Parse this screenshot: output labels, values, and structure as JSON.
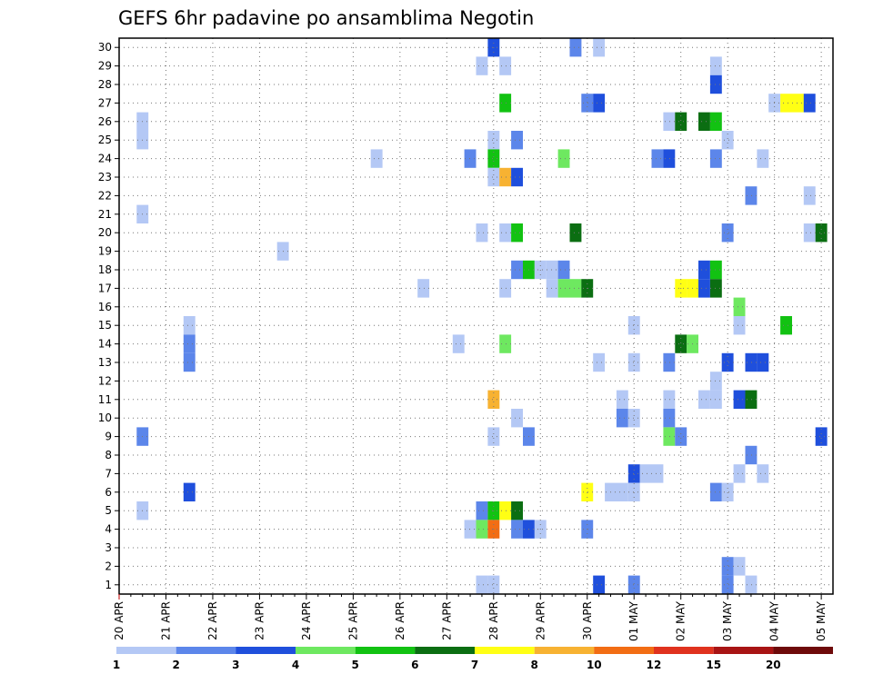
{
  "chart_data": {
    "type": "heatmap",
    "title": "GEFS 6hr padavine po ansamblima Negotin",
    "x_tick_labels": [
      "20 APR",
      "21 APR",
      "22 APR",
      "23 APR",
      "24 APR",
      "25 APR",
      "26 APR",
      "27 APR",
      "28 APR",
      "29 APR",
      "30 APR",
      "01 MAY",
      "02 MAY",
      "03 MAY",
      "04 MAY",
      "05 MAY"
    ],
    "y_tick_labels": [
      "1",
      "2",
      "3",
      "4",
      "5",
      "6",
      "7",
      "8",
      "9",
      "10",
      "11",
      "12",
      "13",
      "14",
      "15",
      "16",
      "17",
      "18",
      "19",
      "20",
      "21",
      "22",
      "23",
      "24",
      "25",
      "26",
      "27",
      "28",
      "29",
      "30"
    ],
    "legend": {
      "labels": [
        "1",
        "2",
        "3",
        "4",
        "5",
        "6",
        "7",
        "8",
        "10",
        "12",
        "15",
        "20"
      ],
      "bins": [
        {
          "from": 1,
          "to": 2,
          "color": "#b4c8f5"
        },
        {
          "from": 2,
          "to": 3,
          "color": "#5c86ea"
        },
        {
          "from": 3,
          "to": 4,
          "color": "#1f4fdc"
        },
        {
          "from": 4,
          "to": 5,
          "color": "#6ee860"
        },
        {
          "from": 5,
          "to": 6,
          "color": "#12c212"
        },
        {
          "from": 6,
          "to": 7,
          "color": "#0b6e12"
        },
        {
          "from": 7,
          "to": 8,
          "color": "#ffff14"
        },
        {
          "from": 8,
          "to": 10,
          "color": "#f7b232"
        },
        {
          "from": 10,
          "to": 12,
          "color": "#f26d14"
        },
        {
          "from": 12,
          "to": 15,
          "color": "#e0321e"
        },
        {
          "from": 15,
          "to": 20,
          "color": "#a81414"
        },
        {
          "from": 20,
          "to": null,
          "color": "#6e0a0a"
        }
      ]
    },
    "cells_note": "each cell: [day_offset_from_20_APR, member, bin_index]",
    "cells": [
      [
        8.0,
        30,
        2
      ],
      [
        9.75,
        30,
        1
      ],
      [
        10.25,
        30,
        0
      ],
      [
        7.75,
        29,
        0
      ],
      [
        8.25,
        29,
        0
      ],
      [
        12.75,
        29,
        0
      ],
      [
        12.75,
        28,
        2
      ],
      [
        8.25,
        27,
        4
      ],
      [
        10.0,
        27,
        1
      ],
      [
        10.25,
        27,
        2
      ],
      [
        14.0,
        27,
        0
      ],
      [
        14.25,
        27,
        6
      ],
      [
        14.5,
        27,
        6
      ],
      [
        14.75,
        27,
        2
      ],
      [
        0.5,
        26,
        0
      ],
      [
        11.75,
        26,
        0
      ],
      [
        12.0,
        26,
        5
      ],
      [
        12.5,
        26,
        5
      ],
      [
        12.75,
        26,
        4
      ],
      [
        0.5,
        25,
        0
      ],
      [
        8.0,
        25,
        0
      ],
      [
        8.5,
        25,
        1
      ],
      [
        13.0,
        25,
        0
      ],
      [
        5.5,
        24,
        0
      ],
      [
        7.5,
        24,
        1
      ],
      [
        8.0,
        24,
        4
      ],
      [
        9.5,
        24,
        3
      ],
      [
        11.5,
        24,
        1
      ],
      [
        11.75,
        24,
        2
      ],
      [
        12.75,
        24,
        1
      ],
      [
        13.75,
        24,
        0
      ],
      [
        8.0,
        23,
        0
      ],
      [
        8.25,
        23,
        7
      ],
      [
        8.5,
        23,
        2
      ],
      [
        13.5,
        22,
        1
      ],
      [
        14.75,
        22,
        0
      ],
      [
        0.5,
        21,
        0
      ],
      [
        7.75,
        20,
        0
      ],
      [
        8.25,
        20,
        0
      ],
      [
        8.5,
        20,
        4
      ],
      [
        9.75,
        20,
        5
      ],
      [
        13.0,
        20,
        1
      ],
      [
        14.75,
        20,
        0
      ],
      [
        15.0,
        20,
        5
      ],
      [
        3.5,
        19,
        0
      ],
      [
        8.5,
        18,
        1
      ],
      [
        8.75,
        18,
        4
      ],
      [
        9.0,
        18,
        0
      ],
      [
        9.25,
        18,
        0
      ],
      [
        9.5,
        18,
        1
      ],
      [
        12.5,
        18,
        2
      ],
      [
        12.75,
        18,
        4
      ],
      [
        6.5,
        17,
        0
      ],
      [
        8.25,
        17,
        0
      ],
      [
        9.25,
        17,
        0
      ],
      [
        9.5,
        17,
        3
      ],
      [
        9.75,
        17,
        3
      ],
      [
        10.0,
        17,
        5
      ],
      [
        12.0,
        17,
        6
      ],
      [
        12.25,
        17,
        6
      ],
      [
        12.5,
        17,
        2
      ],
      [
        12.75,
        17,
        5
      ],
      [
        13.25,
        16,
        3
      ],
      [
        1.5,
        15,
        0
      ],
      [
        11.0,
        15,
        0
      ],
      [
        13.25,
        15,
        0
      ],
      [
        14.25,
        15,
        4
      ],
      [
        1.5,
        14,
        1
      ],
      [
        7.25,
        14,
        0
      ],
      [
        8.25,
        14,
        3
      ],
      [
        12.0,
        14,
        5
      ],
      [
        12.25,
        14,
        3
      ],
      [
        1.5,
        13,
        1
      ],
      [
        10.25,
        13,
        0
      ],
      [
        11.0,
        13,
        0
      ],
      [
        11.75,
        13,
        1
      ],
      [
        13.0,
        13,
        2
      ],
      [
        13.5,
        13,
        2
      ],
      [
        13.75,
        13,
        2
      ],
      [
        12.75,
        12,
        0
      ],
      [
        8.0,
        11,
        7
      ],
      [
        10.75,
        11,
        0
      ],
      [
        11.75,
        11,
        0
      ],
      [
        12.5,
        11,
        0
      ],
      [
        12.75,
        11,
        0
      ],
      [
        13.25,
        11,
        2
      ],
      [
        13.5,
        11,
        5
      ],
      [
        8.5,
        10,
        0
      ],
      [
        10.75,
        10,
        1
      ],
      [
        11.0,
        10,
        0
      ],
      [
        11.75,
        10,
        1
      ],
      [
        0.5,
        9,
        1
      ],
      [
        8.0,
        9,
        0
      ],
      [
        8.75,
        9,
        1
      ],
      [
        11.75,
        9,
        3
      ],
      [
        12.0,
        9,
        1
      ],
      [
        15.0,
        9,
        2
      ],
      [
        13.5,
        8,
        1
      ],
      [
        11.0,
        7,
        2
      ],
      [
        11.25,
        7,
        0
      ],
      [
        11.5,
        7,
        0
      ],
      [
        13.25,
        7,
        0
      ],
      [
        13.75,
        7,
        0
      ],
      [
        1.5,
        6,
        2
      ],
      [
        10.0,
        6,
        6
      ],
      [
        10.5,
        6,
        0
      ],
      [
        10.75,
        6,
        0
      ],
      [
        11.0,
        6,
        0
      ],
      [
        12.75,
        6,
        1
      ],
      [
        13.0,
        6,
        0
      ],
      [
        0.5,
        5,
        0
      ],
      [
        7.75,
        5,
        1
      ],
      [
        8.0,
        5,
        4
      ],
      [
        8.25,
        5,
        6
      ],
      [
        8.5,
        5,
        5
      ],
      [
        7.5,
        4,
        0
      ],
      [
        7.75,
        4,
        3
      ],
      [
        8.0,
        4,
        8
      ],
      [
        8.5,
        4,
        1
      ],
      [
        8.75,
        4,
        2
      ],
      [
        9.0,
        4,
        0
      ],
      [
        10.0,
        4,
        1
      ],
      [
        13.0,
        2,
        1
      ],
      [
        13.25,
        2,
        0
      ],
      [
        7.75,
        1,
        0
      ],
      [
        8.0,
        1,
        0
      ],
      [
        10.25,
        1,
        2
      ],
      [
        11.0,
        1,
        1
      ],
      [
        13.0,
        1,
        1
      ],
      [
        13.5,
        1,
        0
      ]
    ]
  }
}
